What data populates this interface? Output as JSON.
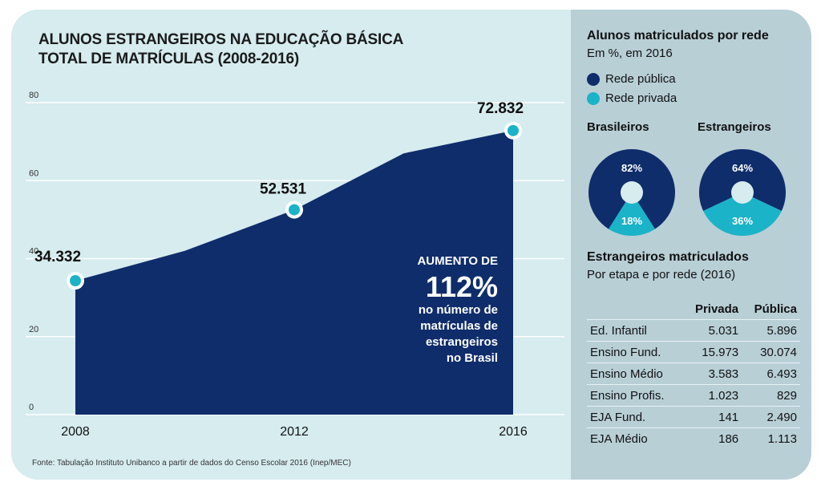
{
  "title_line1": "ALUNOS ESTRANGEIROS NA EDUCAÇÃO BÁSICA",
  "title_line2": "TOTAL DE MATRÍCULAS (2008-2016)",
  "source": "Fonte: Tabulação Instituto Unibanco a partir de dados do Censo Escolar 2016 (Inep/MEC)",
  "colors": {
    "navy": "#0f2d6b",
    "teal": "#1bb3c8",
    "bg": "#d6ecef",
    "panel": "#b8cfd6"
  },
  "chart_data": [
    {
      "type": "area",
      "x": [
        2008,
        2010,
        2012,
        2014,
        2016
      ],
      "values": [
        34.332,
        42.0,
        52.531,
        67.0,
        72.832
      ],
      "ylim": [
        0,
        80
      ],
      "yticks": [
        "0",
        "20",
        "40",
        "60",
        "80"
      ],
      "xticks": [
        "2008",
        "2012",
        "2016"
      ],
      "markers": [
        {
          "x": 2008,
          "y": 34.332,
          "label": "34.332"
        },
        {
          "x": 2012,
          "y": 52.531,
          "label": "52.531"
        },
        {
          "x": 2016,
          "y": 72.832,
          "label": "72.832"
        }
      ],
      "grid": true,
      "annotation": {
        "line1": "AUMENTO DE",
        "big": "112%",
        "line2": "no número de",
        "line3": "matrículas de",
        "line4": "estrangeiros",
        "line5": "no Brasil"
      }
    },
    {
      "type": "pie",
      "title": "Brasileiros",
      "slices": [
        {
          "label": "Rede pública",
          "value": 82,
          "text": "82%"
        },
        {
          "label": "Rede privada",
          "value": 18,
          "text": "18%"
        }
      ]
    },
    {
      "type": "pie",
      "title": "Estrangeiros",
      "slices": [
        {
          "label": "Rede pública",
          "value": 64,
          "text": "64%"
        },
        {
          "label": "Rede privada",
          "value": 36,
          "text": "36%"
        }
      ]
    },
    {
      "type": "table",
      "title": "Estrangeiros matriculados",
      "subtitle": "Por etapa e por rede (2016)",
      "columns": [
        "Privada",
        "Pública"
      ],
      "rows": [
        {
          "label": "Ed. Infantil",
          "privada": "5.031",
          "publica": "5.896"
        },
        {
          "label": "Ensino Fund.",
          "privada": "15.973",
          "publica": "30.074"
        },
        {
          "label": "Ensino Médio",
          "privada": "3.583",
          "publica": "6.493"
        },
        {
          "label": "Ensino Profis.",
          "privada": "1.023",
          "publica": "829"
        },
        {
          "label": "EJA Fund.",
          "privada": "141",
          "publica": "2.490"
        },
        {
          "label": "EJA Médio",
          "privada": "186",
          "publica": "1.113"
        }
      ]
    }
  ],
  "right_panel": {
    "title": "Alunos matriculados por rede",
    "subtitle": "Em %, em 2016",
    "legend": [
      {
        "label": "Rede pública",
        "color": "#0f2d6b"
      },
      {
        "label": "Rede privada",
        "color": "#1bb3c8"
      }
    ]
  }
}
